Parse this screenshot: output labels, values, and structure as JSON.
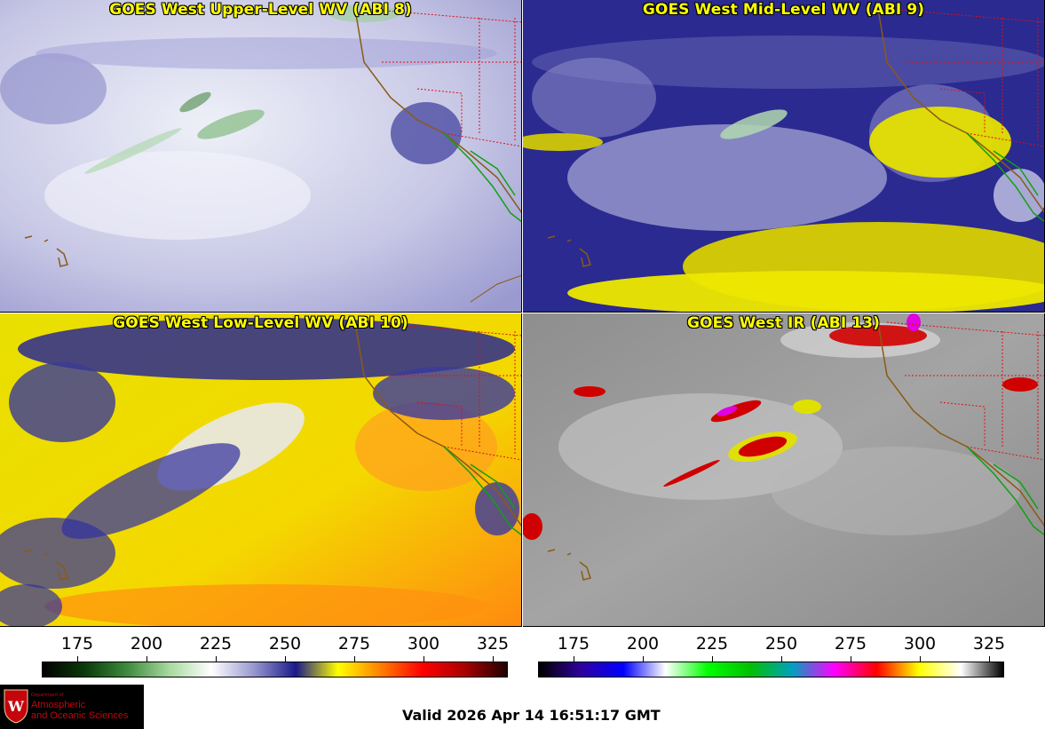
{
  "panels": [
    {
      "title": "GOES West Upper-Level WV (ABI 8)"
    },
    {
      "title": "GOES West Mid-Level WV (ABI 9)"
    },
    {
      "title": "GOES West Low-Level WV (ABI 10)"
    },
    {
      "title": "GOES West IR (ABI 13)"
    }
  ],
  "colorbars": [
    {
      "name": "water-vapor",
      "ticks": [
        "175",
        "200",
        "225",
        "250",
        "275",
        "300",
        "325"
      ],
      "colors": [
        "#000000",
        "#0b3a0b",
        "#3e8a3e",
        "#a8d8a0",
        "#ffffff",
        "#9898d0",
        "#1a1a8a",
        "#ffff00",
        "#ff8000",
        "#ff0000",
        "#aa0000",
        "#200000"
      ]
    },
    {
      "name": "infrared",
      "ticks": [
        "175",
        "200",
        "225",
        "250",
        "275",
        "300",
        "325"
      ],
      "colors": [
        "#000000",
        "#3000a0",
        "#0000ff",
        "#ffffff",
        "#00ff00",
        "#00c000",
        "#00a0c0",
        "#ff00ff",
        "#ff0000",
        "#ffff00",
        "#ffffff",
        "#000000"
      ]
    }
  ],
  "logo": {
    "dept": "Department of",
    "line1": "Atmospheric",
    "line2": "and Oceanic Sciences"
  },
  "valid_time": "Valid 2026 Apr 14 16:51:17 GMT",
  "palette": {
    "wv_pale": "#c8c8e8",
    "wv_blue": "#1a1a8a",
    "wv_yellow": "#f0e800",
    "wv_orange": "#ff9a10",
    "ir_gray": "#9a9a9a",
    "coast": "#8b5a14",
    "border": "#e01010",
    "mexico": "#10a010"
  }
}
